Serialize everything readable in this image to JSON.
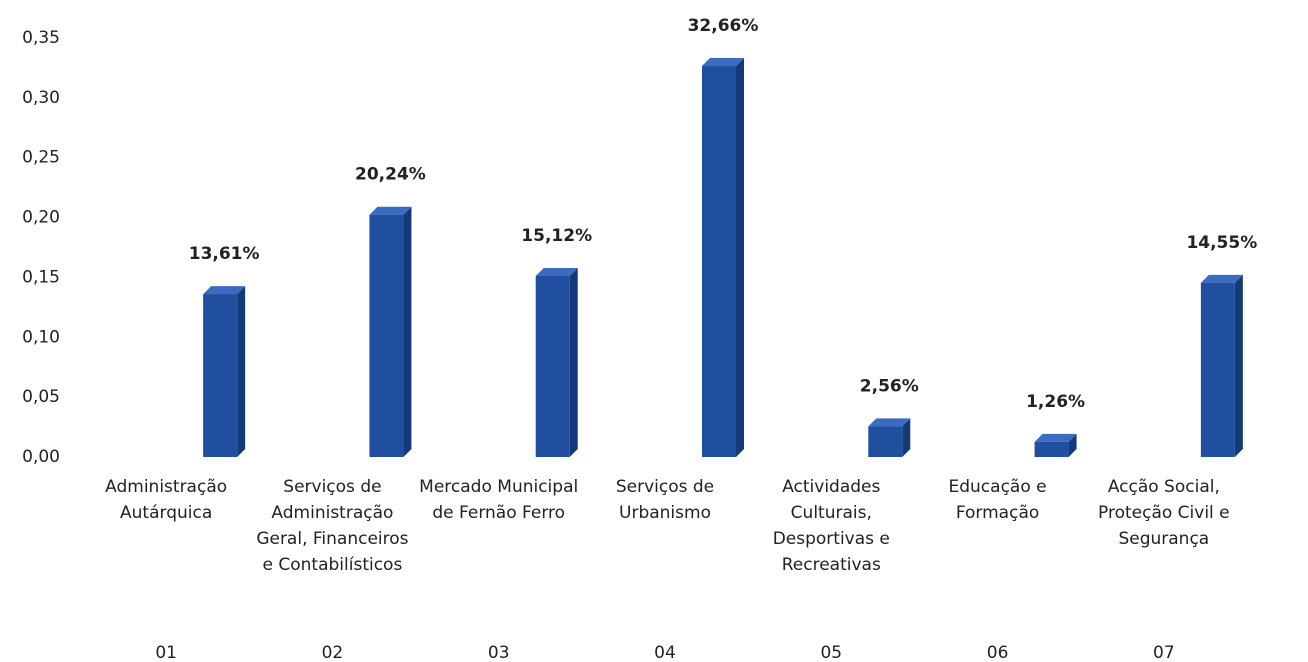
{
  "chart_data": {
    "type": "bar",
    "categories": [
      "Administração Autárquica",
      "Serviços de Administração Geral, Financeiros e Contabilísticos",
      "Mercado Municipal de Fernão Ferro",
      "Serviços de Urbanismo",
      "Actividades Culturais, Desportivas e Recreativas",
      "Educação e Formação",
      "Acção Social, Proteção Civil e Segurança"
    ],
    "codes": [
      "01",
      "02",
      "03",
      "04",
      "05",
      "06",
      "07"
    ],
    "values": [
      0.1361,
      0.2024,
      0.1512,
      0.3266,
      0.0256,
      0.0126,
      0.1455
    ],
    "value_labels": [
      "13,61%",
      "20,24%",
      "15,12%",
      "32,66%",
      "2,56%",
      "1,26%",
      "14,55%"
    ],
    "color": "#1f4f9e",
    "ylim": [
      0,
      0.35
    ],
    "yticks": [
      {
        "value": 0,
        "label": "0,00"
      },
      {
        "value": 0.05,
        "label": "0,05"
      },
      {
        "value": 0.1,
        "label": "0,10"
      },
      {
        "value": 0.15,
        "label": "0,15"
      },
      {
        "value": 0.2,
        "label": "0,20"
      },
      {
        "value": 0.25,
        "label": "0,25"
      },
      {
        "value": 0.3,
        "label": "0,30"
      },
      {
        "value": 0.35,
        "label": "0,35"
      }
    ],
    "grid": false
  }
}
